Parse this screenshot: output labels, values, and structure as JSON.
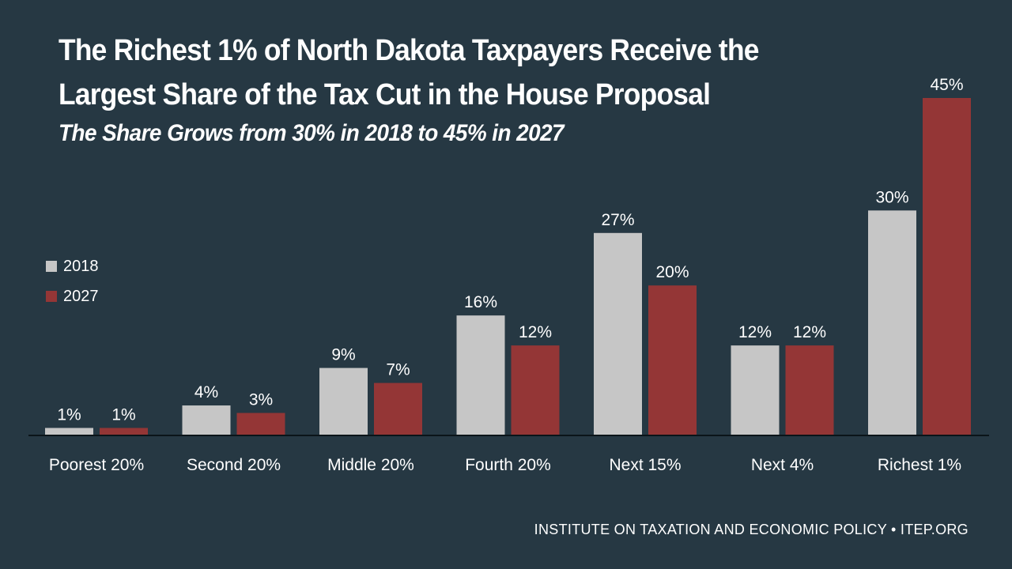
{
  "chart_data": {
    "type": "bar",
    "title_lines": [
      "The Richest 1% of North Dakota Taxpayers Receive the",
      "Largest Share of the Tax Cut in the House Proposal"
    ],
    "subtitle": "The Share Grows from 30% in 2018 to 45% in 2027",
    "categories": [
      "Poorest 20%",
      "Second 20%",
      "Middle 20%",
      "Fourth 20%",
      "Next 15%",
      "Next 4%",
      "Richest 1%"
    ],
    "series": [
      {
        "name": "2018",
        "color": "#c6c6c6",
        "values": [
          1,
          4,
          9,
          16,
          27,
          12,
          30
        ],
        "labels": [
          "1%",
          "4%",
          "9%",
          "16%",
          "27%",
          "12%",
          "30%"
        ]
      },
      {
        "name": "2027",
        "color": "#943636",
        "values": [
          1,
          3,
          7,
          12,
          20,
          12,
          45
        ],
        "labels": [
          "1%",
          "3%",
          "7%",
          "12%",
          "20%",
          "12%",
          "45%"
        ]
      }
    ],
    "ylim": [
      0,
      45
    ],
    "grid": false,
    "legend_position": "left"
  },
  "footer": "INSTITUTE ON TAXATION AND ECONOMIC POLICY • ITEP.ORG"
}
